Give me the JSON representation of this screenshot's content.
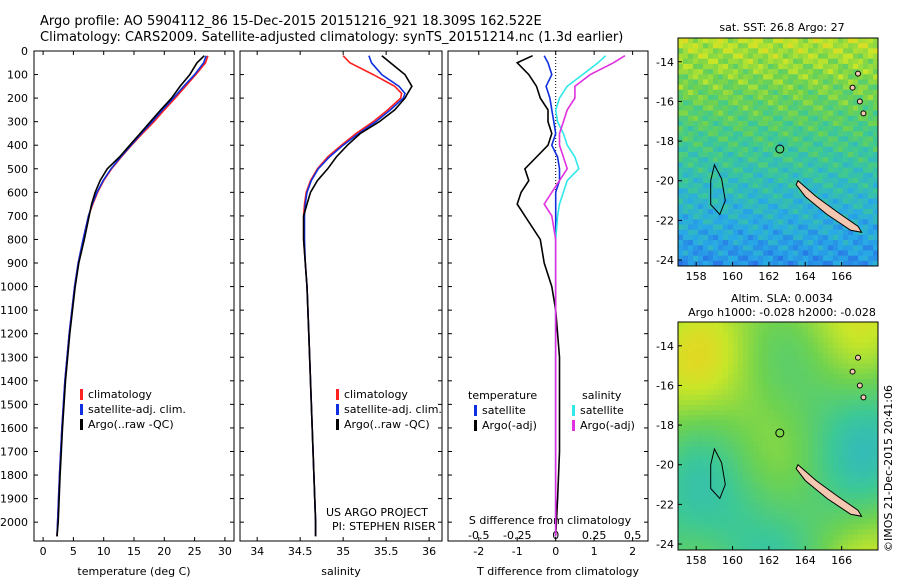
{
  "header": {
    "line1": "Argo profile: AO 5904112_86 15-Dec-2015 20151216_921 18.309S 162.522E",
    "line2": "Climatology: CARS2009. Satellite-adjusted climatology: synTS_20151214.nc (1.3d earlier)"
  },
  "colors": {
    "climatology": "#ff2020",
    "satellite": "#1030e0",
    "argo": "#000000",
    "sat_salinity": "#30e8e8",
    "argo_salinity": "#e030e0"
  },
  "depth_axis": {
    "ticks": [
      0,
      100,
      200,
      300,
      400,
      500,
      600,
      700,
      800,
      900,
      1000,
      1100,
      1200,
      1300,
      1400,
      1500,
      1600,
      1700,
      1800,
      1900,
      2000
    ],
    "ylim": [
      2080,
      0
    ]
  },
  "chart_data": [
    {
      "type": "line",
      "xlabel": "temperature (deg C)",
      "xlim": [
        -1.5,
        31.5
      ],
      "xticks": [
        "0",
        "5",
        "10",
        "15",
        "20",
        "25",
        "30"
      ],
      "xtick_values": [
        0,
        5,
        10,
        15,
        20,
        25,
        30
      ],
      "depth": [
        20,
        50,
        100,
        150,
        200,
        250,
        300,
        350,
        400,
        450,
        500,
        550,
        600,
        650,
        700,
        800,
        900,
        1000,
        1200,
        1400,
        1600,
        1800,
        2000,
        2060
      ],
      "series": [
        {
          "name": "climatology",
          "color_key": "climatology",
          "values": [
            27.2,
            26.8,
            25.2,
            23.5,
            21.8,
            20.0,
            18.3,
            16.4,
            14.6,
            12.9,
            11.3,
            10.0,
            9.0,
            8.2,
            7.5,
            6.6,
            5.8,
            5.2,
            4.3,
            3.6,
            3.1,
            2.7,
            2.4,
            2.3
          ]
        },
        {
          "name": "satellite-adj. clim.",
          "color_key": "satellite",
          "values": [
            26.9,
            26.5,
            25.0,
            23.2,
            21.5,
            19.7,
            18.0,
            16.2,
            14.5,
            12.8,
            11.2,
            9.9,
            8.9,
            8.1,
            7.5,
            6.6,
            5.8,
            5.2,
            4.3,
            3.6,
            3.1,
            2.7,
            2.4,
            2.3
          ]
        },
        {
          "name": "Argo(..raw -QC)",
          "color_key": "argo",
          "values": [
            26.6,
            25.4,
            24.2,
            22.6,
            21.2,
            19.4,
            17.7,
            16.0,
            14.3,
            12.6,
            10.6,
            9.4,
            8.6,
            8.0,
            7.6,
            6.8,
            5.9,
            5.3,
            4.4,
            3.7,
            3.2,
            2.8,
            2.5,
            2.3
          ]
        }
      ],
      "legend": {
        "position": "lower-right",
        "entries": [
          "climatology",
          "satellite-adj. clim.",
          "Argo(..raw -QC)"
        ]
      }
    },
    {
      "type": "line",
      "xlabel": "salinity",
      "xlim": [
        33.8,
        36.15
      ],
      "xticks": [
        "34",
        "34.5",
        "35",
        "35.5",
        "36"
      ],
      "xtick_values": [
        34,
        34.5,
        35,
        35.5,
        36
      ],
      "depth": [
        20,
        50,
        100,
        150,
        180,
        200,
        250,
        300,
        350,
        400,
        450,
        500,
        550,
        600,
        650,
        700,
        800,
        900,
        1000,
        1200,
        1400,
        1600,
        1800,
        2000,
        2060
      ],
      "series": [
        {
          "name": "climatology",
          "color_key": "climatology",
          "values": [
            35.0,
            35.08,
            35.35,
            35.6,
            35.68,
            35.67,
            35.52,
            35.35,
            35.15,
            34.98,
            34.82,
            34.7,
            34.62,
            34.57,
            34.55,
            34.54,
            34.54,
            34.56,
            34.58,
            34.6,
            34.62,
            34.64,
            34.66,
            34.68,
            34.68
          ]
        },
        {
          "name": "satellite-adj. clim.",
          "color_key": "satellite",
          "values": [
            35.3,
            35.33,
            35.45,
            35.65,
            35.72,
            35.7,
            35.55,
            35.38,
            35.18,
            35.0,
            34.84,
            34.71,
            34.63,
            34.58,
            34.56,
            34.55,
            34.55,
            34.56,
            34.58,
            34.6,
            34.62,
            34.64,
            34.66,
            34.68,
            34.68
          ]
        },
        {
          "name": "Argo(..raw -QC)",
          "color_key": "argo",
          "values": [
            35.45,
            35.55,
            35.72,
            35.8,
            35.75,
            35.72,
            35.6,
            35.42,
            35.2,
            35.05,
            34.92,
            34.82,
            34.7,
            34.62,
            34.58,
            34.54,
            34.54,
            34.56,
            34.58,
            34.6,
            34.62,
            34.64,
            34.66,
            34.68,
            34.68
          ]
        }
      ],
      "legend": {
        "position": "lower-right",
        "entries": [
          "climatology",
          "satellite-adj. clim.",
          "Argo(..raw -QC)"
        ]
      },
      "annotations": [
        "US ARGO PROJECT",
        "PI: STEPHEN RISER"
      ]
    },
    {
      "type": "line",
      "xlabel": "T difference from climatology",
      "top_axis_label": "S difference from climatology",
      "xlim": [
        -2.8,
        2.4
      ],
      "xticks": [
        "-2",
        "-1",
        "0",
        "1",
        "2"
      ],
      "xtick_values": [
        -2,
        -1,
        0,
        1,
        2
      ],
      "top_ticks": [
        "-0.5",
        "-0.25",
        "0",
        "0.25",
        "0.5"
      ],
      "top_tick_values": [
        -0.5,
        -0.25,
        0,
        0.25,
        0.5
      ],
      "depth": [
        20,
        50,
        100,
        150,
        200,
        250,
        300,
        350,
        400,
        450,
        500,
        550,
        600,
        650,
        700,
        800,
        900,
        1000,
        1100,
        1300,
        1500,
        1700,
        1900,
        2060
      ],
      "series": [
        {
          "name": "satellite",
          "group": "temperature",
          "color_key": "satellite",
          "values": [
            -0.3,
            -0.2,
            -0.1,
            -0.25,
            -0.15,
            -0.1,
            -0.05,
            0.0,
            -0.1,
            0.05,
            0.1,
            0.1,
            0.0,
            0.0,
            0.0,
            0.0,
            0.0,
            0.0,
            0.0,
            0.0,
            0.0,
            0.0,
            0.0,
            0.0
          ]
        },
        {
          "name": "Argo(-adj)",
          "group": "temperature",
          "color_key": "argo",
          "values": [
            -0.6,
            -1.0,
            -0.7,
            -0.5,
            -0.4,
            -0.2,
            -0.2,
            -0.1,
            -0.2,
            -0.5,
            -0.8,
            -0.7,
            -0.9,
            -1.0,
            -0.8,
            -0.4,
            -0.3,
            -0.1,
            0.0,
            0.1,
            0.1,
            0.1,
            0.05,
            0.0
          ]
        },
        {
          "name": "satellite",
          "group": "salinity",
          "color_key": "sat_salinity",
          "values": [
            1.3,
            1.1,
            0.7,
            0.3,
            0.1,
            0.0,
            0.05,
            0.2,
            0.3,
            0.5,
            0.6,
            0.3,
            0.2,
            0.1,
            0.05,
            0.0,
            0.0,
            0.0,
            0.0,
            0.0,
            0.0,
            0.0,
            0.0,
            0.0
          ]
        },
        {
          "name": "Argo(-adj)",
          "group": "salinity",
          "color_key": "argo_salinity",
          "values": [
            1.8,
            1.5,
            0.9,
            0.5,
            0.5,
            0.3,
            0.2,
            0.1,
            0.1,
            0.2,
            0.3,
            0.1,
            -0.1,
            -0.3,
            -0.1,
            0.0,
            0.0,
            0.0,
            0.0,
            0.0,
            0.0,
            0.0,
            0.0,
            0.0
          ]
        }
      ],
      "legend": {
        "position": "lower-right",
        "groups": [
          "temperature",
          "salinity"
        ],
        "entries": [
          "satellite",
          "Argo(-adj)"
        ]
      }
    }
  ],
  "maps": [
    {
      "title": "sat. SST: 26.8 Argo: 27",
      "subtitle": "",
      "lon_ticks": [
        "158",
        "160",
        "162",
        "164",
        "166"
      ],
      "lat_ticks": [
        "-14",
        "-16",
        "-18",
        "-20",
        "-22",
        "-24"
      ],
      "palette": "sst"
    },
    {
      "title": "Altim. SLA: 0.0034",
      "subtitle": "Argo h1000: -0.028 h2000: -0.028",
      "lon_ticks": [
        "158",
        "160",
        "162",
        "164",
        "166"
      ],
      "lat_ticks": [
        "-14",
        "-16",
        "-18",
        "-20",
        "-22",
        "-24"
      ],
      "palette": "sla"
    }
  ],
  "credit": "©IMOS 21-Dec-2015 20:41:06"
}
